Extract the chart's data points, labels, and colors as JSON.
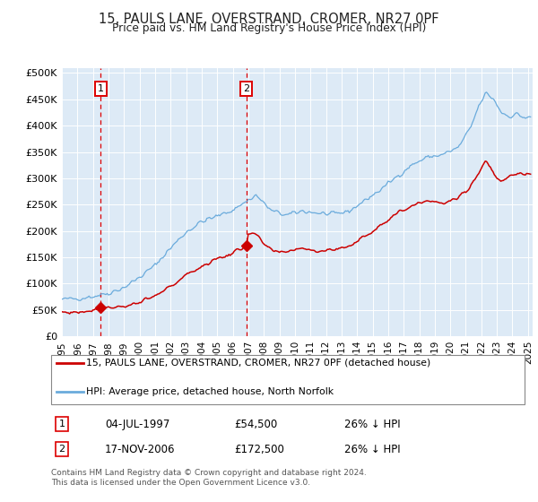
{
  "title": "15, PAULS LANE, OVERSTRAND, CROMER, NR27 0PF",
  "subtitle": "Price paid vs. HM Land Registry's House Price Index (HPI)",
  "xlim": [
    1995.0,
    2025.3
  ],
  "ylim": [
    0,
    510000
  ],
  "yticks": [
    0,
    50000,
    100000,
    150000,
    200000,
    250000,
    300000,
    350000,
    400000,
    450000,
    500000
  ],
  "ytick_labels": [
    "£0",
    "£50K",
    "£100K",
    "£150K",
    "£200K",
    "£250K",
    "£300K",
    "£350K",
    "£400K",
    "£450K",
    "£500K"
  ],
  "xtick_years": [
    1995,
    1996,
    1997,
    1998,
    1999,
    2000,
    2001,
    2002,
    2003,
    2004,
    2005,
    2006,
    2007,
    2008,
    2009,
    2010,
    2011,
    2012,
    2013,
    2014,
    2015,
    2016,
    2017,
    2018,
    2019,
    2020,
    2021,
    2022,
    2023,
    2024,
    2025
  ],
  "hpi_color": "#6aabdc",
  "price_color": "#cc0000",
  "marker_color": "#cc0000",
  "vline_color": "#dd0000",
  "bg_color": "#ddeaf6",
  "purchase1_year": 1997.504,
  "purchase1_price": 54500,
  "purchase1_label": "1",
  "purchase1_date": "04-JUL-1997",
  "purchase1_hpi_text": "26% ↓ HPI",
  "purchase2_year": 2006.876,
  "purchase2_price": 172500,
  "purchase2_label": "2",
  "purchase2_date": "17-NOV-2006",
  "purchase2_hpi_text": "26% ↓ HPI",
  "legend_label1": "15, PAULS LANE, OVERSTRAND, CROMER, NR27 0PF (detached house)",
  "legend_label2": "HPI: Average price, detached house, North Norfolk",
  "footnote1": "Contains HM Land Registry data © Crown copyright and database right 2024.",
  "footnote2": "This data is licensed under the Open Government Licence v3.0."
}
